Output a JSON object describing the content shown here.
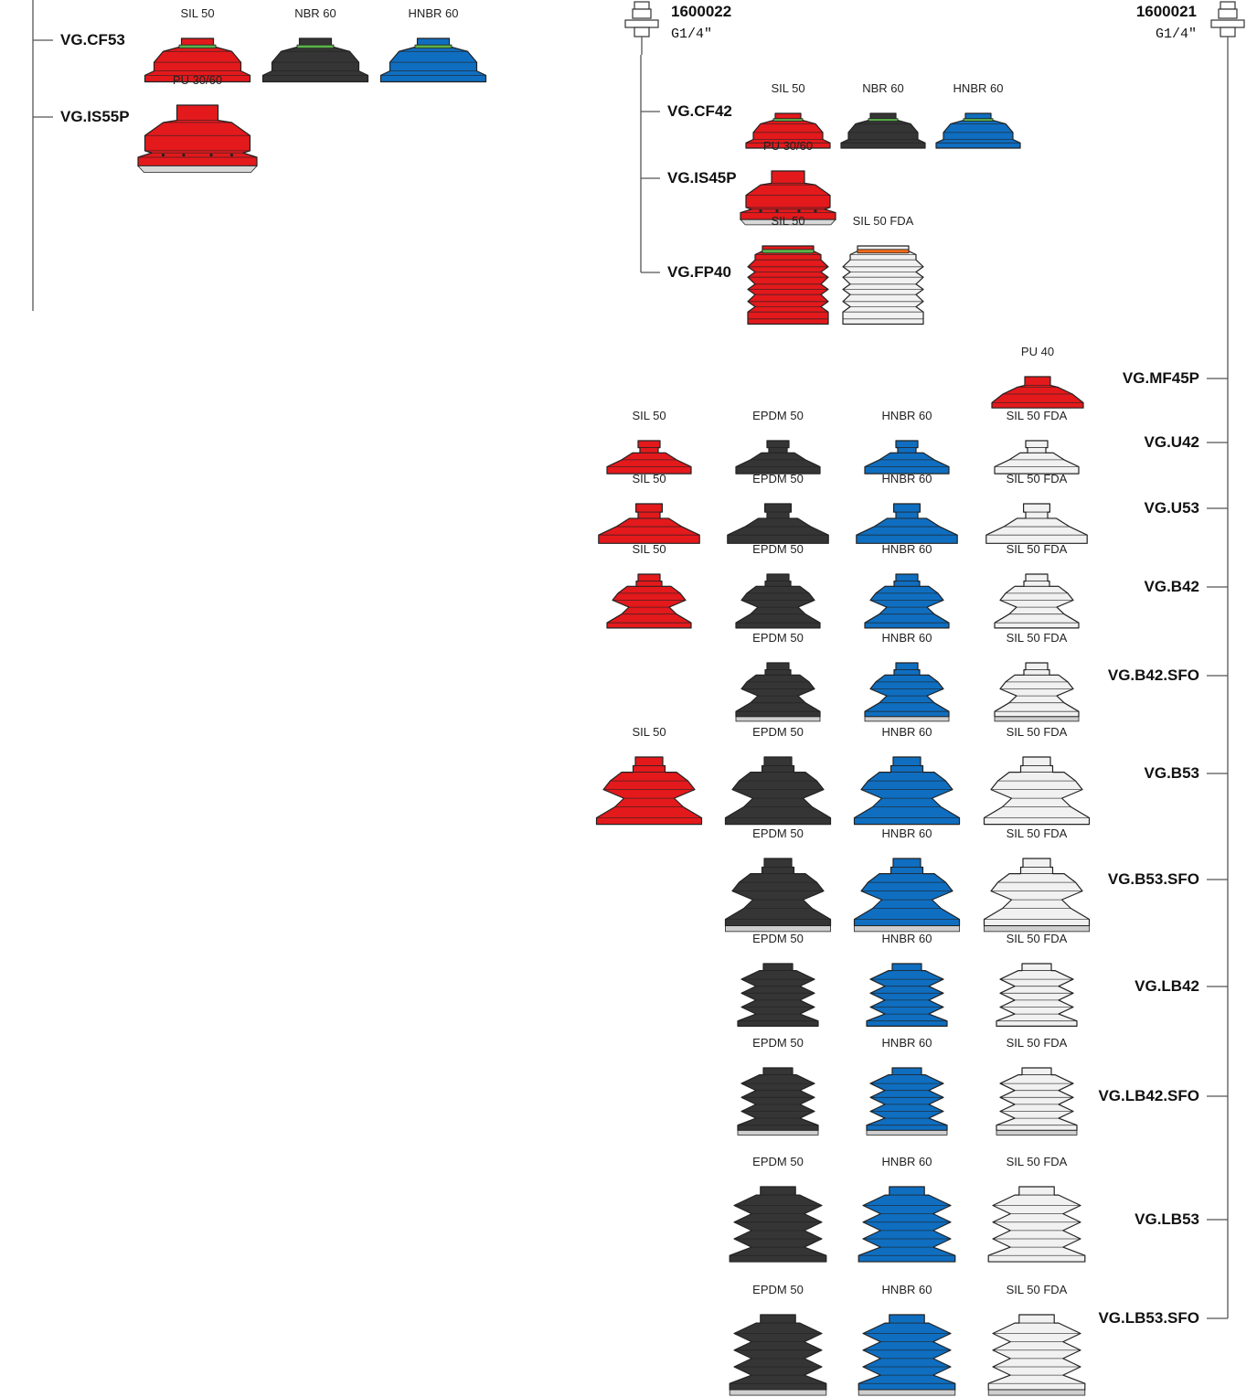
{
  "fittings": [
    {
      "id": "fit-a",
      "code": "1600022",
      "thread": "G1/4\""
    },
    {
      "id": "fit-b",
      "code": "1600021",
      "thread": "G1/4\""
    }
  ],
  "models": {
    "cf53": "VG.CF53",
    "is55p": "VG.IS55P",
    "cf42": "VG.CF42",
    "is45p": "VG.IS45P",
    "fp40": "VG.FP40",
    "mf45p": "VG.MF45P",
    "u42": "VG.U42",
    "u53": "VG.U53",
    "b42": "VG.B42",
    "b42sfo": "VG.B42.SFO",
    "b53": "VG.B53",
    "b53sfo": "VG.B53.SFO",
    "lb42": "VG.LB42",
    "lb42sfo": "VG.LB42.SFO",
    "lb53": "VG.LB53",
    "lb53sfo": "VG.LB53.SFO"
  },
  "materials": {
    "sil50": "SIL 50",
    "nbr60": "NBR 60",
    "hnbr60": "HNBR 60",
    "epdm50": "EPDM 50",
    "pu3060": "PU 30/60",
    "pu40": "PU 40",
    "sil50fda": "SIL 50 FDA"
  },
  "colors": {
    "red": "#e3191c",
    "black": "#353535",
    "blue": "#0f6ec0",
    "white": "#f1f1f1",
    "green": "#5bb14a",
    "orange": "#ee6a1c",
    "line": "#555555"
  },
  "parts": [
    {
      "model": "cf53",
      "mat": "sil50",
      "col": "red",
      "shape": "cf"
    },
    {
      "model": "cf53",
      "mat": "nbr60",
      "col": "black",
      "shape": "cf"
    },
    {
      "model": "cf53",
      "mat": "hnbr60",
      "col": "blue",
      "shape": "cf"
    },
    {
      "model": "is55p",
      "mat": "pu3060",
      "col": "red",
      "shape": "is"
    },
    {
      "model": "cf42",
      "mat": "sil50",
      "col": "red",
      "shape": "cf"
    },
    {
      "model": "cf42",
      "mat": "nbr60",
      "col": "black",
      "shape": "cf"
    },
    {
      "model": "cf42",
      "mat": "hnbr60",
      "col": "blue",
      "shape": "cf"
    },
    {
      "model": "is45p",
      "mat": "pu3060",
      "col": "red",
      "shape": "is"
    },
    {
      "model": "fp40",
      "mat": "sil50",
      "col": "red",
      "shape": "fp"
    },
    {
      "model": "fp40",
      "mat": "sil50fda",
      "col": "white",
      "shape": "fp"
    },
    {
      "model": "mf45p",
      "mat": "pu40",
      "col": "red",
      "shape": "mf"
    },
    {
      "model": "u42",
      "mat": "sil50",
      "col": "red",
      "shape": "u"
    },
    {
      "model": "u42",
      "mat": "epdm50",
      "col": "black",
      "shape": "u"
    },
    {
      "model": "u42",
      "mat": "hnbr60",
      "col": "blue",
      "shape": "u"
    },
    {
      "model": "u42",
      "mat": "sil50fda",
      "col": "white",
      "shape": "u"
    },
    {
      "model": "u53",
      "mat": "sil50",
      "col": "red",
      "shape": "u"
    },
    {
      "model": "u53",
      "mat": "epdm50",
      "col": "black",
      "shape": "u"
    },
    {
      "model": "u53",
      "mat": "hnbr60",
      "col": "blue",
      "shape": "u"
    },
    {
      "model": "u53",
      "mat": "sil50fda",
      "col": "white",
      "shape": "u"
    },
    {
      "model": "b42",
      "mat": "sil50",
      "col": "red",
      "shape": "b"
    },
    {
      "model": "b42",
      "mat": "epdm50",
      "col": "black",
      "shape": "b"
    },
    {
      "model": "b42",
      "mat": "hnbr60",
      "col": "blue",
      "shape": "b"
    },
    {
      "model": "b42",
      "mat": "sil50fda",
      "col": "white",
      "shape": "b"
    },
    {
      "model": "b42sfo",
      "mat": "epdm50",
      "col": "black",
      "shape": "bsfo"
    },
    {
      "model": "b42sfo",
      "mat": "hnbr60",
      "col": "blue",
      "shape": "bsfo"
    },
    {
      "model": "b42sfo",
      "mat": "sil50fda",
      "col": "white",
      "shape": "bsfo"
    },
    {
      "model": "b53",
      "mat": "sil50",
      "col": "red",
      "shape": "b"
    },
    {
      "model": "b53",
      "mat": "epdm50",
      "col": "black",
      "shape": "b"
    },
    {
      "model": "b53",
      "mat": "hnbr60",
      "col": "blue",
      "shape": "b"
    },
    {
      "model": "b53",
      "mat": "sil50fda",
      "col": "white",
      "shape": "b"
    },
    {
      "model": "b53sfo",
      "mat": "epdm50",
      "col": "black",
      "shape": "bsfo"
    },
    {
      "model": "b53sfo",
      "mat": "hnbr60",
      "col": "blue",
      "shape": "bsfo"
    },
    {
      "model": "b53sfo",
      "mat": "sil50fda",
      "col": "white",
      "shape": "bsfo"
    },
    {
      "model": "lb42",
      "mat": "epdm50",
      "col": "black",
      "shape": "lb"
    },
    {
      "model": "lb42",
      "mat": "hnbr60",
      "col": "blue",
      "shape": "lb"
    },
    {
      "model": "lb42",
      "mat": "sil50fda",
      "col": "white",
      "shape": "lb"
    },
    {
      "model": "lb42sfo",
      "mat": "epdm50",
      "col": "black",
      "shape": "lbsfo"
    },
    {
      "model": "lb42sfo",
      "mat": "hnbr60",
      "col": "blue",
      "shape": "lbsfo"
    },
    {
      "model": "lb42sfo",
      "mat": "sil50fda",
      "col": "white",
      "shape": "lbsfo"
    },
    {
      "model": "lb53",
      "mat": "epdm50",
      "col": "black",
      "shape": "lb"
    },
    {
      "model": "lb53",
      "mat": "hnbr60",
      "col": "blue",
      "shape": "lb"
    },
    {
      "model": "lb53",
      "mat": "sil50fda",
      "col": "white",
      "shape": "lb"
    },
    {
      "model": "lb53sfo",
      "mat": "epdm50",
      "col": "black",
      "shape": "lbsfo"
    },
    {
      "model": "lb53sfo",
      "mat": "hnbr60",
      "col": "blue",
      "shape": "lbsfo"
    },
    {
      "model": "lb53sfo",
      "mat": "sil50fda",
      "col": "white",
      "shape": "lbsfo"
    }
  ]
}
